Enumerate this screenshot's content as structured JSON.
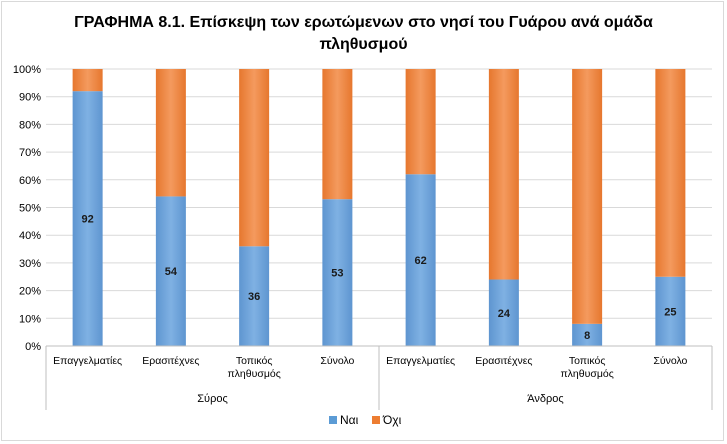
{
  "chart_data": {
    "type": "bar",
    "stacked": true,
    "percent_stacked": true,
    "title": "ΓΡΑΦΗΜΑ 8.1. Επίσκεψη των ερωτώμενων στο νησί του Γυάρου ανά ομάδα πληθυσμού",
    "title_lines": [
      "ΓΡΑΦΗΜΑ 8.1. Επίσκεψη των ερωτώμενων στο νησί του Γυάρου ανά ομάδα",
      "πληθυσμού"
    ],
    "ylim": [
      0,
      100
    ],
    "yticks": [
      "0%",
      "10%",
      "20%",
      "30%",
      "40%",
      "50%",
      "60%",
      "70%",
      "80%",
      "90%",
      "100%"
    ],
    "groups": [
      {
        "name": "Σύρος",
        "categories": [
          {
            "lines": [
              "Επαγγελματίες"
            ]
          },
          {
            "lines": [
              "Ερασιτέχνες"
            ]
          },
          {
            "lines": [
              "Τοπικός",
              "πληθυσμός"
            ]
          },
          {
            "lines": [
              "Σύνολο"
            ]
          }
        ]
      },
      {
        "name": "Άνδρος",
        "categories": [
          {
            "lines": [
              "Επαγγελματίες"
            ]
          },
          {
            "lines": [
              "Ερασιτέχνες"
            ]
          },
          {
            "lines": [
              "Τοπικός",
              "πληθυσμός"
            ]
          },
          {
            "lines": [
              "Σύνολο"
            ]
          }
        ]
      }
    ],
    "series": [
      {
        "name": "Ναι",
        "color": "#5B9BD5",
        "values": [
          92,
          54,
          36,
          53,
          62,
          24,
          8,
          25
        ],
        "labels": [
          "92",
          "54",
          "36",
          "53",
          "62",
          "24",
          "8",
          "25"
        ]
      },
      {
        "name": "Όχι",
        "color": "#ED7D31",
        "values": [
          8,
          46,
          64,
          47,
          38,
          76,
          92,
          75
        ]
      }
    ],
    "legend_position": "bottom",
    "grid": true
  }
}
